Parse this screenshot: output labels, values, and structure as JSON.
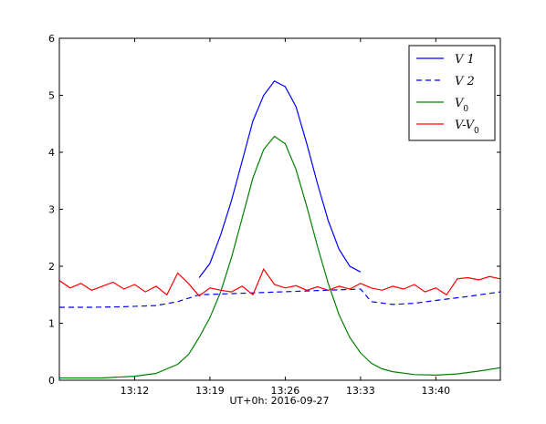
{
  "chart_data": {
    "type": "line",
    "xlabel": "UT+0h: 2016-09-27",
    "ylabel": "",
    "title": "",
    "xlim": [
      "13:05",
      "13:46"
    ],
    "ylim": [
      0,
      6
    ],
    "x_ticks": [
      "13:12",
      "13:19",
      "13:26",
      "13:33",
      "13:40"
    ],
    "y_ticks": [
      0,
      1,
      2,
      3,
      4,
      5,
      6
    ],
    "grid": false,
    "legend_position": "top-right",
    "series": [
      {
        "name": "V 1",
        "color": "#0000ff",
        "style": "solid",
        "x": [
          "13:18",
          "13:19",
          "13:20",
          "13:21",
          "13:22",
          "13:23",
          "13:24",
          "13:25",
          "13:26",
          "13:27",
          "13:28",
          "13:29",
          "13:30",
          "13:31",
          "13:32",
          "13:33"
        ],
        "y": [
          1.8,
          2.05,
          2.55,
          3.15,
          3.85,
          4.55,
          5.0,
          5.25,
          5.15,
          4.8,
          4.15,
          3.45,
          2.8,
          2.3,
          2.0,
          1.9
        ]
      },
      {
        "name": "V 2",
        "color": "#0000ff",
        "style": "dashed",
        "x": [
          "13:05",
          "13:08",
          "13:11",
          "13:14",
          "13:16",
          "13:18",
          "13:33",
          "13:34",
          "13:36",
          "13:38",
          "13:40",
          "13:43",
          "13:46"
        ],
        "y": [
          1.28,
          1.28,
          1.29,
          1.31,
          1.38,
          1.5,
          1.6,
          1.38,
          1.33,
          1.35,
          1.4,
          1.47,
          1.55
        ]
      },
      {
        "name": "V_0",
        "color": "#008000",
        "style": "solid",
        "x": [
          "13:05",
          "13:09",
          "13:12",
          "13:14",
          "13:16",
          "13:17",
          "13:18",
          "13:19",
          "13:20",
          "13:21",
          "13:22",
          "13:23",
          "13:24",
          "13:25",
          "13:26",
          "13:27",
          "13:28",
          "13:29",
          "13:30",
          "13:31",
          "13:32",
          "13:33",
          "13:34",
          "13:35",
          "13:36",
          "13:38",
          "13:40",
          "13:42",
          "13:44",
          "13:46"
        ],
        "y": [
          0.04,
          0.04,
          0.07,
          0.12,
          0.28,
          0.45,
          0.75,
          1.1,
          1.55,
          2.15,
          2.85,
          3.55,
          4.05,
          4.28,
          4.15,
          3.7,
          3.05,
          2.35,
          1.7,
          1.15,
          0.75,
          0.48,
          0.3,
          0.2,
          0.15,
          0.1,
          0.09,
          0.11,
          0.16,
          0.22
        ]
      },
      {
        "name": "V-V_0",
        "color": "#ff0000",
        "style": "solid",
        "x": [
          "13:05",
          "13:06",
          "13:07",
          "13:08",
          "13:09",
          "13:10",
          "13:11",
          "13:12",
          "13:13",
          "13:14",
          "13:15",
          "13:16",
          "13:17",
          "13:18",
          "13:19",
          "13:20",
          "13:21",
          "13:22",
          "13:23",
          "13:24",
          "13:25",
          "13:26",
          "13:27",
          "13:28",
          "13:29",
          "13:30",
          "13:31",
          "13:32",
          "13:33",
          "13:34",
          "13:35",
          "13:36",
          "13:37",
          "13:38",
          "13:39",
          "13:40",
          "13:41",
          "13:42",
          "13:43",
          "13:44",
          "13:45",
          "13:46"
        ],
        "y": [
          1.75,
          1.62,
          1.7,
          1.58,
          1.65,
          1.72,
          1.6,
          1.68,
          1.55,
          1.65,
          1.5,
          1.88,
          1.7,
          1.48,
          1.62,
          1.58,
          1.55,
          1.65,
          1.5,
          1.95,
          1.68,
          1.62,
          1.66,
          1.58,
          1.64,
          1.58,
          1.65,
          1.6,
          1.7,
          1.62,
          1.58,
          1.65,
          1.6,
          1.68,
          1.55,
          1.62,
          1.5,
          1.78,
          1.8,
          1.76,
          1.82,
          1.78
        ]
      }
    ]
  }
}
